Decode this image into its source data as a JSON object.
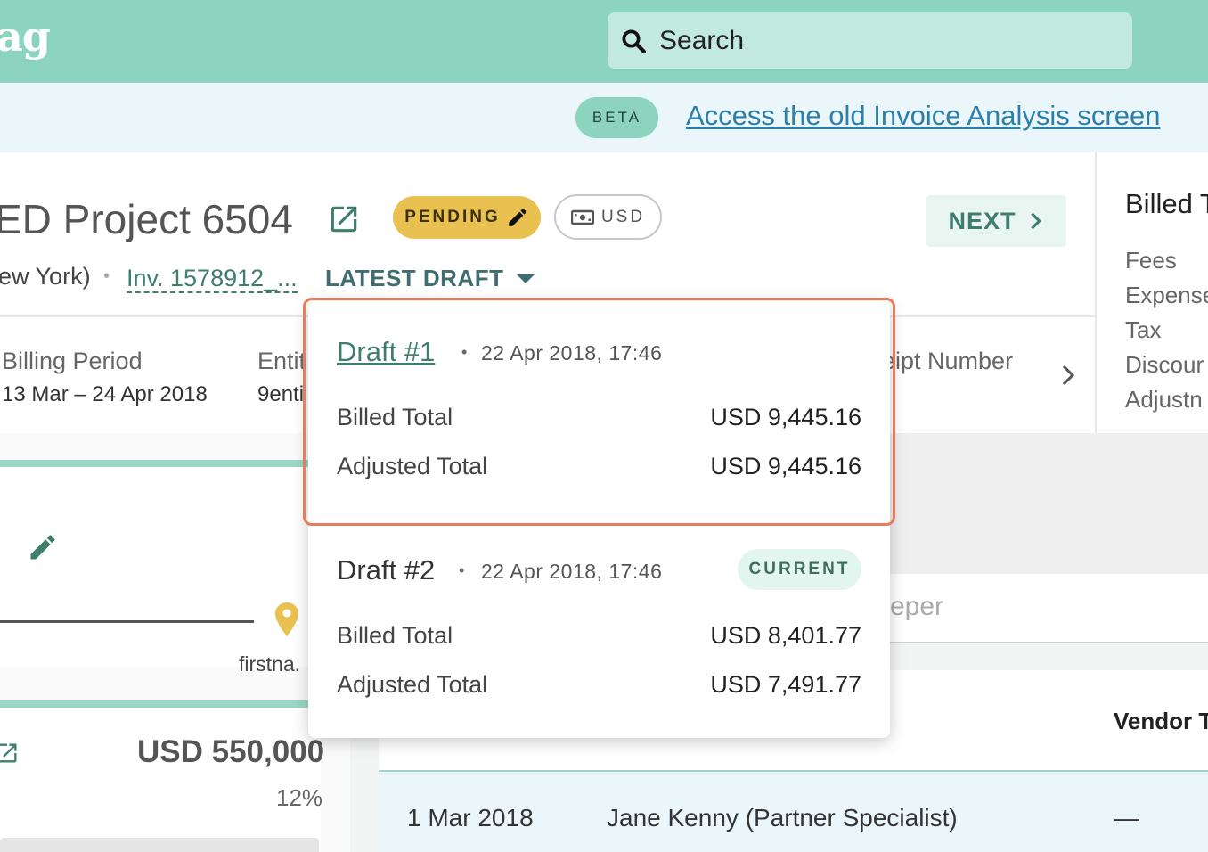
{
  "topbar": {
    "logo_text": "ag",
    "search_placeholder": "Search"
  },
  "banner": {
    "beta_label": "BETA",
    "old_screen_link": "Access the old Invoice Analysis screen"
  },
  "header": {
    "project_title": "ED Project 6504",
    "status_label": "PENDING",
    "currency_label": "USD",
    "next_label": "NEXT",
    "location": "ew York)",
    "invoice_link": "Inv. 1578912_...",
    "draft_selector": "LATEST DRAFT",
    "billing_period_label": "Billing Period",
    "billing_period_value": "13 Mar – 24 Apr 2018",
    "entity_label": "Entit",
    "entity_value": "9enti",
    "receipt_label": "eipt Number"
  },
  "right_panel": {
    "title": "Billed T",
    "items": [
      "Fees",
      "Expense",
      "Tax",
      "Discour",
      "Adjustn"
    ]
  },
  "left": {
    "firstname": "firstna.",
    "budget": "USD 550,000",
    "percent": "12%"
  },
  "main": {
    "timekeeper_placeholder": "eper",
    "vendor_header": "Vendor T",
    "row": {
      "date": "1 Mar 2018",
      "name": "Jane Kenny (Partner Specialist)",
      "vendor": "—"
    }
  },
  "dropdown": {
    "drafts": [
      {
        "name": "Draft #1",
        "date": "22 Apr 2018, 17:46",
        "billed_label": "Billed Total",
        "billed_value": "USD 9,445.16",
        "adjusted_label": "Adjusted Total",
        "adjusted_value": "USD 9,445.16"
      },
      {
        "name": "Draft #2",
        "date": "22 Apr 2018, 17:46",
        "badge": "CURRENT",
        "billed_label": "Billed Total",
        "billed_value": "USD 8,401.77",
        "adjusted_label": "Adjusted Total",
        "adjusted_value": "USD 7,491.77"
      }
    ]
  },
  "colors": {
    "brand": "#8dd4bf",
    "banner_bg": "#eaf6fa",
    "pending": "#e9c150",
    "accent_text": "#3f7d6d",
    "highlight_border": "#e27e5c"
  },
  "icons": {
    "search": "search-icon",
    "external_link": "external-link-icon",
    "pencil": "pencil-icon",
    "money": "money-icon",
    "chevron_right": "chevron-right-icon",
    "caret_down": "caret-down-icon",
    "pin": "location-pin-icon"
  }
}
